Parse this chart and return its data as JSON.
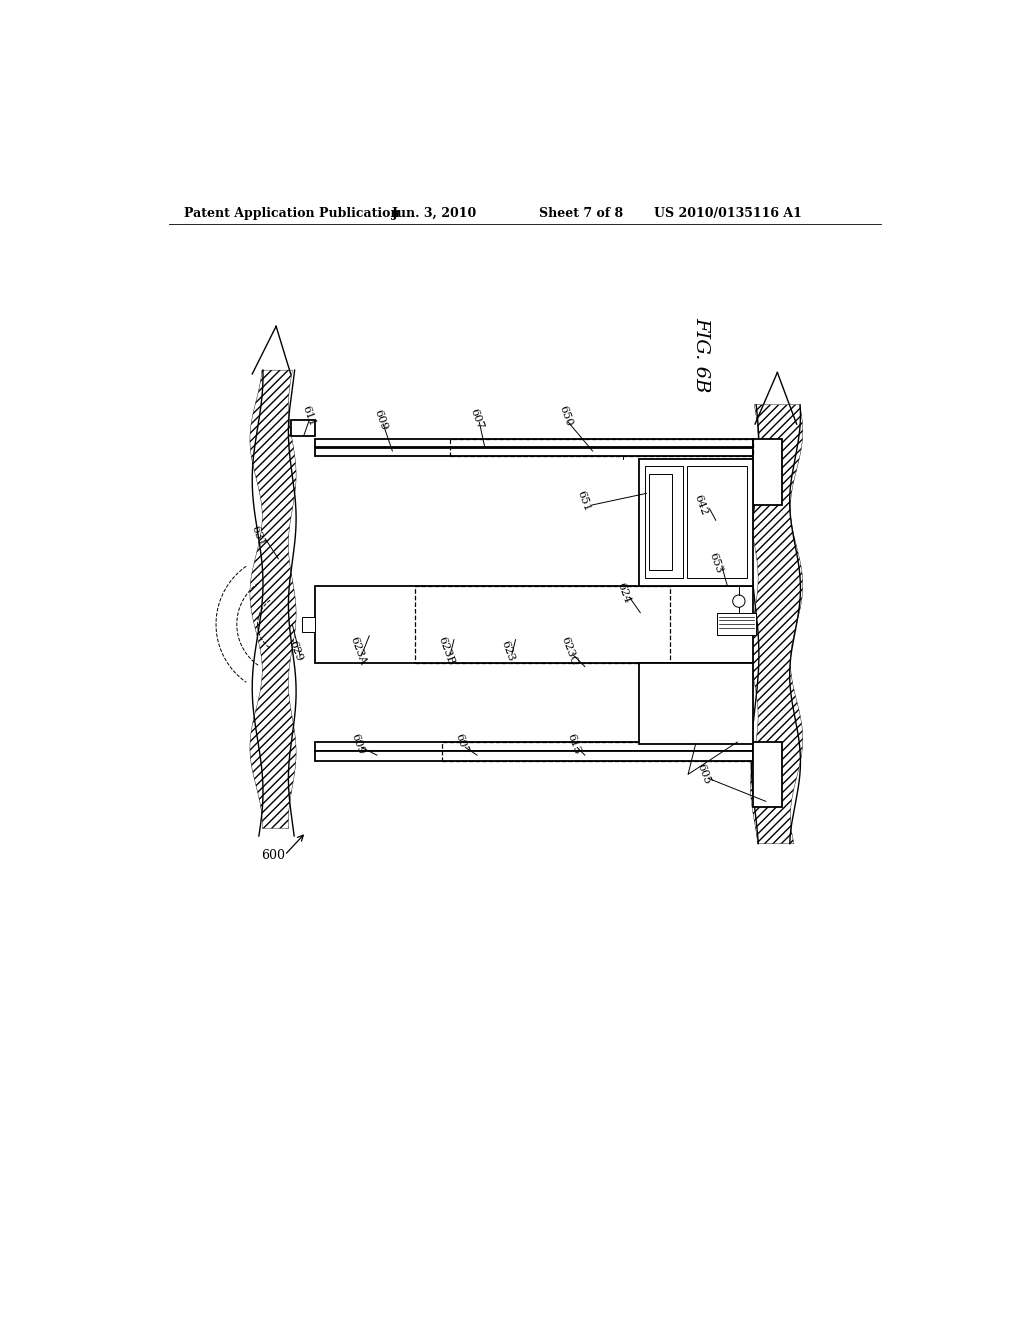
{
  "bg_color": "#ffffff",
  "line_color": "#000000",
  "header_text": "Patent Application Publication",
  "header_date": "Jun. 3, 2010",
  "header_sheet": "Sheet 7 of 8",
  "header_patent": "US 2010/0135116 A1",
  "fig_label": "FIG. 6B",
  "lw_main": 1.3,
  "lw_thin": 0.7,
  "lw_thick": 2.0,
  "label_fs": 8.0,
  "header_fs": 9.0
}
